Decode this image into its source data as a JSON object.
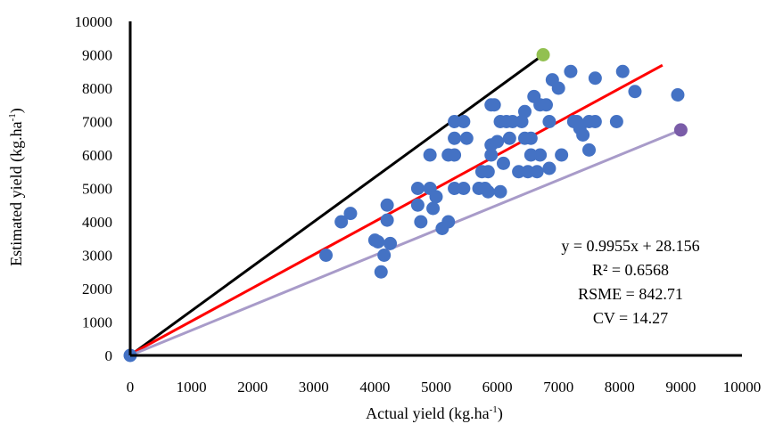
{
  "chart_data": {
    "type": "scatter",
    "title": "",
    "xlabel": {
      "base": "Actual yield (kg.ha",
      "sup": "-1",
      "end": ")"
    },
    "ylabel": {
      "base": "Estimated yield (kg.ha",
      "sup": "-1",
      "end": ")"
    },
    "xlim": [
      0,
      10000
    ],
    "ylim": [
      0,
      10000
    ],
    "x_ticks": [
      "0",
      "1000",
      "2000",
      "3000",
      "4000",
      "5000",
      "6000",
      "7000",
      "8000",
      "9000",
      "10000"
    ],
    "y_ticks": [
      "0",
      "1000",
      "2000",
      "3000",
      "4000",
      "5000",
      "6000",
      "7000",
      "8000",
      "9000",
      "10000"
    ],
    "grid": false,
    "legend": "none",
    "colors": {
      "points": "#4472C4",
      "one_to_one_line": "#000000",
      "regression_line": "#FF0000",
      "lower_line": "#A89BC9",
      "green_point": "#92C050",
      "purple_point": "#7A5CA8"
    },
    "series": [
      {
        "type": "scatter",
        "points": [
          [
            0,
            0
          ],
          [
            3200,
            3000
          ],
          [
            3450,
            4000
          ],
          [
            3600,
            4250
          ],
          [
            4000,
            3450
          ],
          [
            4050,
            3400
          ],
          [
            4150,
            3000
          ],
          [
            4100,
            2500
          ],
          [
            4200,
            4500
          ],
          [
            4200,
            4050
          ],
          [
            4250,
            3350
          ],
          [
            4700,
            5000
          ],
          [
            4700,
            4500
          ],
          [
            4750,
            4000
          ],
          [
            4900,
            6000
          ],
          [
            4900,
            5000
          ],
          [
            4950,
            4400
          ],
          [
            5000,
            4750
          ],
          [
            5100,
            3800
          ],
          [
            5200,
            4000
          ],
          [
            5200,
            6000
          ],
          [
            5300,
            6000
          ],
          [
            5300,
            5000
          ],
          [
            5300,
            6500
          ],
          [
            5300,
            7000
          ],
          [
            5450,
            7000
          ],
          [
            5500,
            6500
          ],
          [
            5450,
            5000
          ],
          [
            5700,
            5000
          ],
          [
            5750,
            5500
          ],
          [
            5800,
            5000
          ],
          [
            5850,
            4900
          ],
          [
            5850,
            5500
          ],
          [
            5900,
            6000
          ],
          [
            5900,
            6300
          ],
          [
            5900,
            7500
          ],
          [
            5950,
            7500
          ],
          [
            6000,
            6400
          ],
          [
            6050,
            4900
          ],
          [
            6050,
            7000
          ],
          [
            6100,
            5750
          ],
          [
            6150,
            7000
          ],
          [
            6200,
            6500
          ],
          [
            6250,
            7000
          ],
          [
            6350,
            5500
          ],
          [
            6400,
            7000
          ],
          [
            6450,
            7300
          ],
          [
            6450,
            6500
          ],
          [
            6500,
            5500
          ],
          [
            6550,
            6500
          ],
          [
            6550,
            6000
          ],
          [
            6600,
            7750
          ],
          [
            6650,
            5500
          ],
          [
            6700,
            6000
          ],
          [
            6700,
            7500
          ],
          [
            6800,
            7500
          ],
          [
            6850,
            5600
          ],
          [
            6850,
            7000
          ],
          [
            6900,
            8250
          ],
          [
            7000,
            8000
          ],
          [
            7050,
            6000
          ],
          [
            7200,
            8500
          ],
          [
            7250,
            7000
          ],
          [
            7300,
            7000
          ],
          [
            7350,
            6800
          ],
          [
            7400,
            6600
          ],
          [
            7500,
            6150
          ],
          [
            7500,
            7000
          ],
          [
            7600,
            7000
          ],
          [
            7600,
            8300
          ],
          [
            7950,
            7000
          ],
          [
            8050,
            8500
          ],
          [
            8250,
            7900
          ],
          [
            8950,
            7800
          ]
        ]
      },
      {
        "type": "line",
        "name": "",
        "x": [
          0,
          6750
        ],
        "y": [
          0,
          9000
        ]
      },
      {
        "type": "line",
        "name": "",
        "x": [
          0,
          8700
        ],
        "y": [
          28.156,
          8688.99
        ]
      },
      {
        "type": "line",
        "name": "",
        "x": [
          0,
          9000
        ],
        "y": [
          0,
          6750
        ]
      },
      {
        "type": "point",
        "name": "",
        "x": 6750,
        "y": 9000
      },
      {
        "type": "point",
        "name": "",
        "x": 9000,
        "y": 6750
      }
    ],
    "annotations": [
      "y = 0.9955x + 28.156",
      "R² = 0.6568",
      "RSME = 842.71",
      "CV = 14.27"
    ]
  }
}
